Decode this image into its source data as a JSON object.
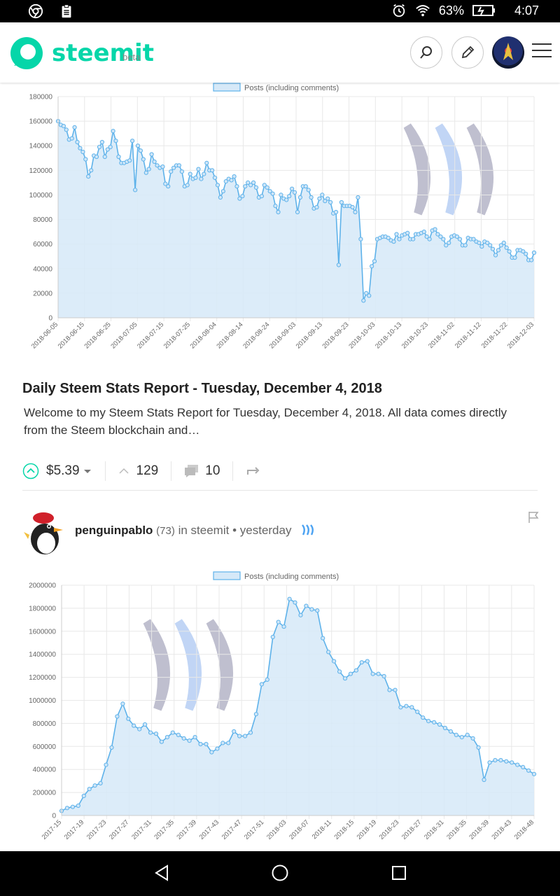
{
  "status_bar": {
    "battery": "63%",
    "time": "4:07"
  },
  "header": {
    "brand": "steemit",
    "brand_tag": "beta"
  },
  "icons": {
    "status_left": [
      "chrome-icon",
      "clipboard-icon"
    ],
    "status_right": [
      "alarm-icon",
      "wifi-icon",
      "battery-charging-icon"
    ],
    "header": [
      "search-icon",
      "pencil-icon",
      "avatar",
      "menu-icon"
    ],
    "actions": [
      "upvote-icon",
      "caret-down-icon",
      "chevron-up-icon",
      "comments-icon",
      "reblog-icon"
    ],
    "nav": [
      "back-icon",
      "home-icon",
      "recents-icon"
    ]
  },
  "colors": {
    "brand": "#06d6a9",
    "chart_fill": "#d6e9f8",
    "chart_line": "#5eb2ea",
    "steem_link": "#4ba2f2"
  },
  "post1": {
    "title": "Daily Steem Stats Report - Tuesday, December 4, 2018",
    "excerpt": "Welcome to my Steem Stats Report for Tuesday, December 4, 2018. All data comes directly from the Steem blockchain and…",
    "payout": "$5.39",
    "votes": "129",
    "comments": "10"
  },
  "post2": {
    "author": "penguinpablo",
    "reputation": "(73)",
    "in_text": "in steemit",
    "separator": "•",
    "time": "yesterday"
  },
  "chart_data": [
    {
      "type": "area",
      "legend": "Posts (including comments)",
      "ylim": [
        0,
        180000
      ],
      "yticks": [
        0,
        20000,
        40000,
        60000,
        80000,
        100000,
        120000,
        140000,
        160000,
        180000
      ],
      "x_labels": [
        "2018-06-05",
        "2018-06-15",
        "2018-06-25",
        "2018-07-05",
        "2018-07-15",
        "2018-07-25",
        "2018-08-04",
        "2018-08-14",
        "2018-08-24",
        "2018-09-03",
        "2018-09-13",
        "2018-09-23",
        "2018-10-03",
        "2018-10-13",
        "2018-10-23",
        "2018-11-02",
        "2018-11-12",
        "2018-11-22",
        "2018-12-03"
      ],
      "series": [
        {
          "name": "Posts (including comments)",
          "values": [
            160000,
            157000,
            156000,
            153000,
            145000,
            146000,
            155000,
            143000,
            138000,
            135000,
            129000,
            115000,
            120000,
            132000,
            131000,
            139000,
            143000,
            131000,
            137000,
            139000,
            152000,
            144000,
            131000,
            126000,
            126000,
            127000,
            128000,
            144000,
            104000,
            140000,
            136000,
            129000,
            118000,
            121000,
            133000,
            127000,
            124000,
            122000,
            123000,
            109000,
            107000,
            119000,
            122000,
            124000,
            124000,
            119000,
            107000,
            108000,
            117000,
            113000,
            114000,
            121000,
            113000,
            117000,
            126000,
            120000,
            120000,
            114000,
            108000,
            98000,
            103000,
            111000,
            113000,
            112000,
            115000,
            107000,
            97000,
            99000,
            107000,
            110000,
            108000,
            110000,
            106000,
            98000,
            99000,
            108000,
            106000,
            103000,
            101000,
            91000,
            86000,
            100000,
            97000,
            96000,
            99000,
            105000,
            102000,
            86000,
            98000,
            107000,
            107000,
            104000,
            98000,
            89000,
            90000,
            97000,
            100000,
            95000,
            97000,
            94000,
            85000,
            86000,
            43000,
            94000,
            91000,
            91000,
            91000,
            90000,
            86000,
            98000,
            64000,
            14000,
            20000,
            18000,
            42000,
            46000,
            64000,
            65000,
            66000,
            66000,
            65000,
            63000,
            62000,
            68000,
            64000,
            67000,
            68000,
            69000,
            64000,
            64000,
            68000,
            68000,
            69000,
            70000,
            66000,
            64000,
            71000,
            72000,
            68000,
            66000,
            64000,
            59000,
            61000,
            66000,
            67000,
            66000,
            64000,
            59000,
            59000,
            65000,
            64000,
            64000,
            62000,
            61000,
            58000,
            62000,
            61000,
            59000,
            56000,
            51000,
            55000,
            59000,
            61000,
            57000,
            54000,
            49000,
            49000,
            55000,
            55000,
            54000,
            52000,
            47000,
            47000,
            53000
          ]
        }
      ]
    },
    {
      "type": "area",
      "legend": "Posts (including comments)",
      "ylim": [
        0,
        2000000
      ],
      "yticks": [
        0,
        200000,
        400000,
        600000,
        800000,
        1000000,
        1200000,
        1400000,
        1600000,
        1800000,
        2000000
      ],
      "x_labels": [
        "2017-15",
        "2017-19",
        "2017-23",
        "2017-27",
        "2017-31",
        "2017-35",
        "2017-39",
        "2017-43",
        "2017-47",
        "2017-51",
        "2018-03",
        "2018-07",
        "2018-11",
        "2018-15",
        "2018-19",
        "2018-23",
        "2018-27",
        "2018-31",
        "2018-35",
        "2018-39",
        "2018-43",
        "2018-48"
      ],
      "series": [
        {
          "name": "Posts (including comments)",
          "values": [
            40000,
            65000,
            75000,
            85000,
            170000,
            230000,
            260000,
            280000,
            440000,
            590000,
            860000,
            970000,
            840000,
            780000,
            750000,
            790000,
            720000,
            710000,
            640000,
            680000,
            720000,
            700000,
            670000,
            650000,
            680000,
            620000,
            620000,
            550000,
            580000,
            630000,
            630000,
            730000,
            690000,
            690000,
            720000,
            880000,
            1140000,
            1180000,
            1550000,
            1680000,
            1640000,
            1880000,
            1850000,
            1740000,
            1820000,
            1790000,
            1780000,
            1540000,
            1420000,
            1340000,
            1250000,
            1190000,
            1230000,
            1260000,
            1330000,
            1340000,
            1230000,
            1230000,
            1210000,
            1090000,
            1090000,
            940000,
            950000,
            940000,
            900000,
            850000,
            820000,
            810000,
            790000,
            760000,
            730000,
            700000,
            680000,
            700000,
            670000,
            590000,
            310000,
            460000,
            480000,
            480000,
            470000,
            460000,
            440000,
            420000,
            390000,
            360000
          ]
        }
      ]
    }
  ]
}
